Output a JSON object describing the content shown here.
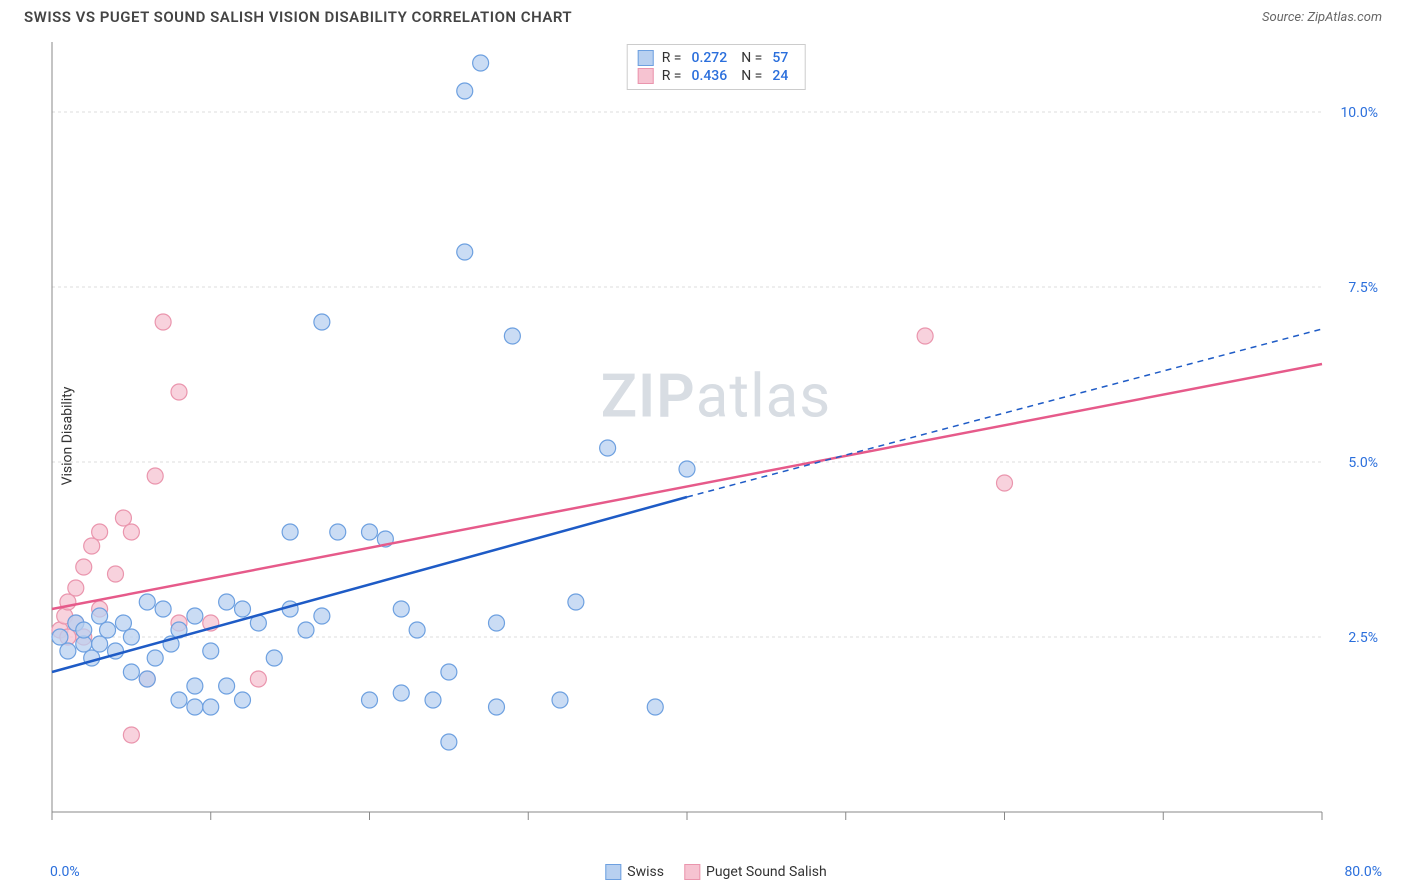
{
  "header": {
    "title": "SWISS VS PUGET SOUND SALISH VISION DISABILITY CORRELATION CHART",
    "source_label": "Source:",
    "source_name": "ZipAtlas.com"
  },
  "watermark": {
    "zip": "ZIP",
    "atlas": "atlas"
  },
  "chart": {
    "type": "scatter",
    "ylabel": "Vision Disability",
    "xlim": [
      0,
      80
    ],
    "ylim": [
      0,
      11
    ],
    "x_tick_label_min": "0.0%",
    "x_tick_label_max": "80.0%",
    "y_ticks": [
      2.5,
      5.0,
      7.5,
      10.0
    ],
    "y_tick_labels": [
      "2.5%",
      "5.0%",
      "7.5%",
      "10.0%"
    ],
    "x_tick_positions": [
      0,
      10,
      20,
      30,
      40,
      50,
      60,
      70,
      80
    ],
    "grid_color": "#dcdcdc",
    "axis_color": "#888",
    "background_color": "#ffffff",
    "marker_radius": 8,
    "marker_stroke_width": 1.2,
    "line_width": 2.5,
    "series": {
      "swiss": {
        "label": "Swiss",
        "fill": "#b8d0f0",
        "stroke": "#6da0e0",
        "line_color": "#1e5bc6",
        "R": "0.272",
        "N": "57",
        "trend": {
          "solid": {
            "x1": 0,
            "y1": 2.0,
            "x2": 40,
            "y2": 4.5
          },
          "dash": {
            "x1": 40,
            "y1": 4.5,
            "x2": 80,
            "y2": 6.9
          }
        },
        "points": [
          [
            0.5,
            2.5
          ],
          [
            1,
            2.3
          ],
          [
            1.5,
            2.7
          ],
          [
            2,
            2.4
          ],
          [
            2,
            2.6
          ],
          [
            2.5,
            2.2
          ],
          [
            3,
            2.8
          ],
          [
            3,
            2.4
          ],
          [
            3.5,
            2.6
          ],
          [
            4,
            2.3
          ],
          [
            4.5,
            2.7
          ],
          [
            5,
            2.0
          ],
          [
            5,
            2.5
          ],
          [
            6,
            3.0
          ],
          [
            6.5,
            2.2
          ],
          [
            7,
            2.9
          ],
          [
            7.5,
            2.4
          ],
          [
            8,
            2.6
          ],
          [
            8,
            1.6
          ],
          [
            9,
            1.5
          ],
          [
            9,
            2.8
          ],
          [
            10,
            1.5
          ],
          [
            10,
            2.3
          ],
          [
            11,
            3.0
          ],
          [
            12,
            1.6
          ],
          [
            12,
            2.9
          ],
          [
            13,
            2.7
          ],
          [
            14,
            2.2
          ],
          [
            15,
            4.0
          ],
          [
            15,
            2.9
          ],
          [
            16,
            2.6
          ],
          [
            17,
            7.0
          ],
          [
            17,
            2.8
          ],
          [
            18,
            4.0
          ],
          [
            20,
            4.0
          ],
          [
            20,
            1.6
          ],
          [
            21,
            3.9
          ],
          [
            22,
            1.7
          ],
          [
            22,
            2.9
          ],
          [
            23,
            2.6
          ],
          [
            24,
            1.6
          ],
          [
            25,
            2.0
          ],
          [
            25,
            1.0
          ],
          [
            26,
            8.0
          ],
          [
            26,
            10.3
          ],
          [
            27,
            10.7
          ],
          [
            28,
            2.7
          ],
          [
            28,
            1.5
          ],
          [
            29,
            6.8
          ],
          [
            32,
            1.6
          ],
          [
            33,
            3.0
          ],
          [
            35,
            5.2
          ],
          [
            38,
            1.5
          ],
          [
            40,
            4.9
          ],
          [
            6,
            1.9
          ],
          [
            9,
            1.8
          ],
          [
            11,
            1.8
          ]
        ]
      },
      "salish": {
        "label": "Puget Sound Salish",
        "fill": "#f6c3d1",
        "stroke": "#ea95ad",
        "line_color": "#e65a8a",
        "R": "0.436",
        "N": "24",
        "trend": {
          "solid": {
            "x1": 0,
            "y1": 2.9,
            "x2": 80,
            "y2": 6.4
          }
        },
        "points": [
          [
            0.5,
            2.6
          ],
          [
            0.8,
            2.8
          ],
          [
            1,
            2.5
          ],
          [
            1,
            3.0
          ],
          [
            1.5,
            3.2
          ],
          [
            1.5,
            2.7
          ],
          [
            2,
            2.5
          ],
          [
            2,
            3.5
          ],
          [
            2.5,
            3.8
          ],
          [
            3,
            4.0
          ],
          [
            3,
            2.9
          ],
          [
            4,
            3.4
          ],
          [
            4.5,
            4.2
          ],
          [
            5,
            1.1
          ],
          [
            5,
            4.0
          ],
          [
            6,
            1.9
          ],
          [
            6.5,
            4.8
          ],
          [
            7,
            7.0
          ],
          [
            8,
            6.0
          ],
          [
            13,
            1.9
          ],
          [
            10,
            2.7
          ],
          [
            55,
            6.8
          ],
          [
            60,
            4.7
          ],
          [
            8,
            2.7
          ]
        ]
      }
    },
    "legend_top": {
      "r_label": "R =",
      "n_label": "N ="
    }
  }
}
